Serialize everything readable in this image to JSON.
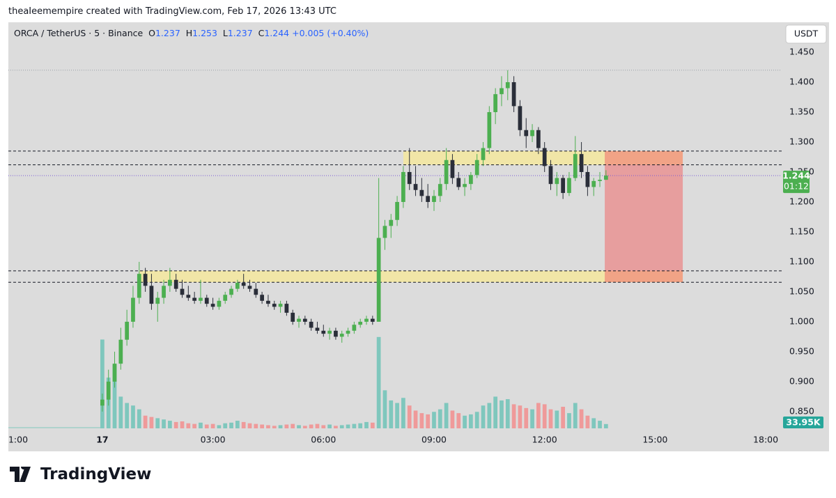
{
  "caption": "theaIeemempire created with TradingView.com, Feb 17, 2026 13:43 UTC",
  "brand": "TradingView",
  "chart_data": {
    "type": "candlestick",
    "symbol": "ORCA / TetherUS · 5 · Binance",
    "keys": [
      "O",
      "H",
      "L",
      "C"
    ],
    "change": "+0.005",
    "change_pct": "(+0.40%)",
    "currency": "USDT",
    "countdown": "01:12",
    "up_color": "#4caf50",
    "down_color": "#2a2e39",
    "x": [
      0,
      10,
      20,
      30,
      40,
      50,
      60,
      70,
      80,
      90,
      100,
      110,
      120,
      130,
      140,
      150,
      160,
      170,
      180,
      190,
      200,
      210,
      220,
      230,
      240,
      250,
      260,
      270,
      280,
      290,
      300,
      310,
      320,
      330,
      340,
      350,
      360,
      370,
      380,
      390,
      400,
      410,
      420,
      430,
      440,
      450,
      460,
      470,
      480,
      490,
      500,
      510,
      520,
      530,
      540,
      550,
      560,
      570,
      580,
      590,
      600,
      610,
      620,
      630,
      640,
      650,
      660,
      670,
      680,
      690,
      700,
      710,
      720,
      730,
      740,
      750,
      760,
      770,
      780,
      790,
      800,
      810,
      820
    ],
    "ohlc": [
      [
        0.86,
        0.88,
        0.85,
        0.87
      ],
      [
        0.87,
        0.92,
        0.86,
        0.9
      ],
      [
        0.9,
        0.95,
        0.89,
        0.93
      ],
      [
        0.93,
        0.99,
        0.92,
        0.97
      ],
      [
        0.97,
        1.02,
        0.96,
        1.0
      ],
      [
        1.0,
        1.06,
        0.99,
        1.04
      ],
      [
        1.04,
        1.1,
        1.03,
        1.08
      ],
      [
        1.08,
        1.09,
        1.05,
        1.06
      ],
      [
        1.06,
        1.08,
        1.02,
        1.03
      ],
      [
        1.03,
        1.05,
        1.0,
        1.04
      ],
      [
        1.04,
        1.07,
        1.03,
        1.06
      ],
      [
        1.06,
        1.09,
        1.05,
        1.07
      ],
      [
        1.07,
        1.08,
        1.05,
        1.055
      ],
      [
        1.055,
        1.07,
        1.04,
        1.045
      ],
      [
        1.045,
        1.06,
        1.035,
        1.04
      ],
      [
        1.04,
        1.05,
        1.03,
        1.035
      ],
      [
        1.035,
        1.07,
        1.03,
        1.04
      ],
      [
        1.04,
        1.045,
        1.025,
        1.03
      ],
      [
        1.03,
        1.04,
        1.02,
        1.025
      ],
      [
        1.025,
        1.04,
        1.02,
        1.035
      ],
      [
        1.035,
        1.05,
        1.03,
        1.045
      ],
      [
        1.045,
        1.06,
        1.04,
        1.055
      ],
      [
        1.055,
        1.07,
        1.05,
        1.065
      ],
      [
        1.065,
        1.08,
        1.055,
        1.06
      ],
      [
        1.06,
        1.07,
        1.05,
        1.055
      ],
      [
        1.055,
        1.065,
        1.04,
        1.045
      ],
      [
        1.045,
        1.05,
        1.03,
        1.035
      ],
      [
        1.035,
        1.045,
        1.025,
        1.03
      ],
      [
        1.03,
        1.035,
        1.02,
        1.025
      ],
      [
        1.025,
        1.035,
        1.015,
        1.03
      ],
      [
        1.03,
        1.035,
        1.01,
        1.015
      ],
      [
        1.015,
        1.02,
        0.995,
        1.0
      ],
      [
        1.0,
        1.01,
        0.99,
        1.005
      ],
      [
        1.005,
        1.01,
        0.995,
        1.0
      ],
      [
        1.0,
        1.005,
        0.985,
        0.99
      ],
      [
        0.99,
        1.0,
        0.98,
        0.985
      ],
      [
        0.985,
        0.995,
        0.975,
        0.98
      ],
      [
        0.98,
        0.99,
        0.97,
        0.985
      ],
      [
        0.985,
        0.99,
        0.97,
        0.975
      ],
      [
        0.975,
        0.985,
        0.965,
        0.98
      ],
      [
        0.98,
        0.99,
        0.975,
        0.985
      ],
      [
        0.985,
        1.0,
        0.98,
        0.995
      ],
      [
        0.995,
        1.005,
        0.99,
        1.0
      ],
      [
        1.0,
        1.01,
        0.995,
        1.005
      ],
      [
        1.005,
        1.01,
        0.995,
        1.0
      ],
      [
        1.0,
        1.24,
        1.0,
        1.14
      ],
      [
        1.14,
        1.17,
        1.12,
        1.16
      ],
      [
        1.16,
        1.18,
        1.14,
        1.17
      ],
      [
        1.17,
        1.21,
        1.16,
        1.2
      ],
      [
        1.2,
        1.26,
        1.19,
        1.25
      ],
      [
        1.25,
        1.29,
        1.22,
        1.23
      ],
      [
        1.23,
        1.26,
        1.21,
        1.22
      ],
      [
        1.22,
        1.24,
        1.2,
        1.21
      ],
      [
        1.21,
        1.23,
        1.19,
        1.2
      ],
      [
        1.2,
        1.22,
        1.185,
        1.21
      ],
      [
        1.21,
        1.24,
        1.2,
        1.23
      ],
      [
        1.23,
        1.29,
        1.22,
        1.27
      ],
      [
        1.27,
        1.28,
        1.23,
        1.24
      ],
      [
        1.24,
        1.25,
        1.22,
        1.225
      ],
      [
        1.225,
        1.24,
        1.21,
        1.23
      ],
      [
        1.23,
        1.25,
        1.22,
        1.245
      ],
      [
        1.245,
        1.28,
        1.24,
        1.27
      ],
      [
        1.27,
        1.3,
        1.26,
        1.29
      ],
      [
        1.29,
        1.36,
        1.28,
        1.35
      ],
      [
        1.35,
        1.39,
        1.33,
        1.38
      ],
      [
        1.38,
        1.41,
        1.36,
        1.39
      ],
      [
        1.39,
        1.42,
        1.37,
        1.4
      ],
      [
        1.4,
        1.41,
        1.35,
        1.36
      ],
      [
        1.36,
        1.37,
        1.31,
        1.32
      ],
      [
        1.32,
        1.34,
        1.29,
        1.31
      ],
      [
        1.31,
        1.33,
        1.3,
        1.32
      ],
      [
        1.32,
        1.325,
        1.28,
        1.29
      ],
      [
        1.29,
        1.3,
        1.25,
        1.26
      ],
      [
        1.26,
        1.27,
        1.22,
        1.23
      ],
      [
        1.23,
        1.25,
        1.21,
        1.24
      ],
      [
        1.24,
        1.245,
        1.205,
        1.215
      ],
      [
        1.215,
        1.25,
        1.21,
        1.24
      ],
      [
        1.24,
        1.31,
        1.235,
        1.28
      ],
      [
        1.28,
        1.3,
        1.24,
        1.25
      ],
      [
        1.25,
        1.26,
        1.21,
        1.225
      ],
      [
        1.225,
        1.24,
        1.21,
        1.235
      ],
      [
        1.235,
        1.25,
        1.225,
        1.237
      ],
      [
        1.237,
        1.253,
        1.237,
        1.244
      ]
    ],
    "volume": {
      "values": [
        700,
        400,
        500,
        250,
        200,
        180,
        150,
        100,
        90,
        80,
        70,
        60,
        50,
        55,
        40,
        35,
        45,
        30,
        35,
        25,
        40,
        45,
        60,
        50,
        40,
        35,
        30,
        25,
        20,
        25,
        30,
        35,
        25,
        20,
        30,
        35,
        25,
        30,
        20,
        25,
        30,
        35,
        40,
        50,
        45,
        720,
        300,
        220,
        200,
        240,
        180,
        140,
        120,
        110,
        130,
        150,
        200,
        140,
        120,
        100,
        110,
        130,
        180,
        200,
        250,
        220,
        230,
        190,
        180,
        160,
        150,
        200,
        190,
        150,
        140,
        170,
        120,
        200,
        150,
        100,
        80,
        60,
        33.95
      ],
      "last_label": "33.95K",
      "up_color": "#7fc7bd",
      "down_color": "#ef9a9a"
    },
    "levels": [
      1.285,
      1.262,
      1.085,
      1.066
    ],
    "high_line": 1.42,
    "zones": [
      {
        "low": 1.262,
        "high": 1.285,
        "start": 490,
        "end": 945
      },
      {
        "low": 1.066,
        "high": 1.085,
        "start": 60,
        "end": 945
      }
    ],
    "risk_box": {
      "low": 1.066,
      "high": 1.285,
      "start": 818,
      "end": 945
    },
    "xlim": [
      -153,
      1106
    ],
    "xticks": [
      {
        "value": -180,
        "label": "1:00"
      },
      {
        "value": 0,
        "label": "17"
      },
      {
        "value": 180,
        "label": "03:00"
      },
      {
        "value": 360,
        "label": "06:00"
      },
      {
        "value": 540,
        "label": "09:00"
      },
      {
        "value": 720,
        "label": "12:00"
      },
      {
        "value": 900,
        "label": "15:00"
      },
      {
        "value": 1080,
        "label": "18:00"
      }
    ],
    "ylim": [
      0.822,
      1.5
    ],
    "yticks": [
      {
        "value": 0.85,
        "label": "0.850"
      },
      {
        "value": 0.9,
        "label": "0.900"
      },
      {
        "value": 0.95,
        "label": "0.950"
      },
      {
        "value": 1.0,
        "label": "1.000"
      },
      {
        "value": 1.05,
        "label": "1.050"
      },
      {
        "value": 1.1,
        "label": "1.100"
      },
      {
        "value": 1.15,
        "label": "1.150"
      },
      {
        "value": 1.2,
        "label": "1.200"
      },
      {
        "value": 1.25,
        "label": "1.250"
      },
      {
        "value": 1.3,
        "label": "1.300"
      },
      {
        "value": 1.35,
        "label": "1.350"
      },
      {
        "value": 1.4,
        "label": "1.400"
      },
      {
        "value": 1.45,
        "label": "1.450"
      }
    ],
    "y2lim": [
      0,
      3200
    ],
    "grid": false
  }
}
